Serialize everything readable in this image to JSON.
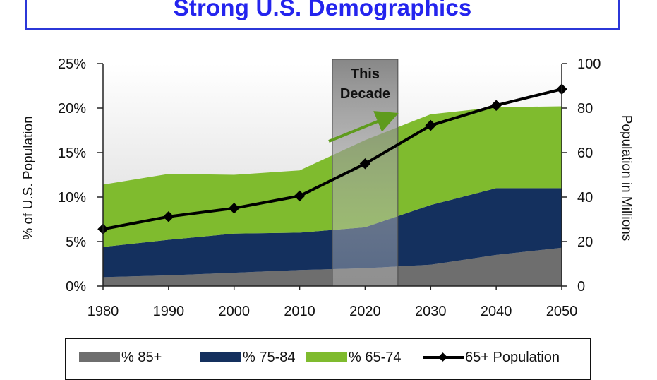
{
  "title": "Strong U.S. Demographics",
  "chart_data": {
    "type": "area",
    "x": [
      1980,
      1990,
      2000,
      2010,
      2020,
      2030,
      2040,
      2050
    ],
    "x_tick_labels": [
      "1980",
      "1990",
      "2000",
      "2010",
      "2020",
      "2030",
      "2040",
      "2050"
    ],
    "ylabel_left": "% of U.S. Population",
    "ylim_left": [
      0,
      25
    ],
    "y_left_ticks": [
      "0%",
      "5%",
      "10%",
      "15%",
      "20%",
      "25%"
    ],
    "ylabel_right": "Population in Millions",
    "ylim_right": [
      0,
      100
    ],
    "y_right_ticks": [
      "0",
      "20",
      "40",
      "60",
      "80",
      "100"
    ],
    "stacked": true,
    "series": [
      {
        "name": "% 85+",
        "axis": "left",
        "kind": "area",
        "color": "#6e6e6e",
        "values": [
          1.0,
          1.2,
          1.5,
          1.8,
          2.0,
          2.4,
          3.5,
          4.3
        ]
      },
      {
        "name": "% 75-84",
        "axis": "left",
        "kind": "area",
        "color": "#14305e",
        "values": [
          3.4,
          4.0,
          4.4,
          4.2,
          4.6,
          6.7,
          7.5,
          6.7
        ]
      },
      {
        "name": "% 65-74",
        "axis": "left",
        "kind": "area",
        "color": "#7fbb2e",
        "values": [
          7.0,
          7.4,
          6.6,
          7.0,
          9.8,
          10.2,
          9.1,
          9.2
        ]
      },
      {
        "name": "65+ Population",
        "axis": "right",
        "kind": "line",
        "color": "#000000",
        "values": [
          25.6,
          31.2,
          35.0,
          40.5,
          55.0,
          72.2,
          81.2,
          88.5
        ]
      }
    ],
    "annotation": {
      "text_line1": "This",
      "text_line2": "Decade",
      "x_start": 2015,
      "x_end": 2025
    },
    "legend": {
      "position": "bottom"
    }
  }
}
